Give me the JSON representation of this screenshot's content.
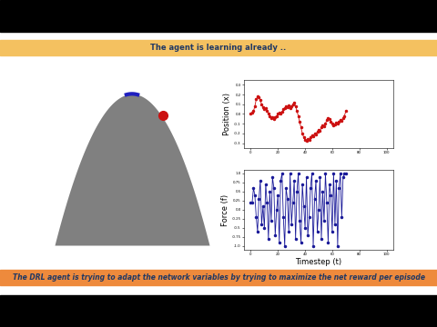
{
  "header": {
    "title": "The agent is learning already .."
  },
  "footer": {
    "text": "The DRL agent is trying to adapt the network variables by trying to maximize the net reward per episode"
  },
  "chart_data": [
    {
      "type": "line",
      "y_label": "Position (x)",
      "color": "#cc1111",
      "marker": "o",
      "line_style": "solid",
      "x": [
        0,
        1,
        2,
        3,
        4,
        5,
        6,
        7,
        8,
        9,
        10,
        11,
        12,
        13,
        14,
        15,
        16,
        17,
        18,
        19,
        20,
        21,
        22,
        23,
        24,
        25,
        26,
        27,
        28,
        29,
        30,
        31,
        32,
        33,
        34,
        35,
        36,
        37,
        38,
        39,
        40,
        41,
        42,
        43,
        44,
        45,
        46,
        47,
        48,
        49,
        50,
        51,
        52,
        53,
        54,
        55,
        56,
        57,
        58,
        59,
        60,
        61,
        62,
        63,
        64,
        65,
        66,
        67,
        68,
        69,
        70
      ],
      "values": [
        0.0,
        0.01,
        0.03,
        0.08,
        0.15,
        0.18,
        0.17,
        0.14,
        0.1,
        0.07,
        0.05,
        0.06,
        0.03,
        0.0,
        -0.02,
        -0.04,
        -0.03,
        -0.05,
        -0.03,
        -0.02,
        0.0,
        0.01,
        0.0,
        0.02,
        0.05,
        0.06,
        0.08,
        0.07,
        0.09,
        0.06,
        0.08,
        0.1,
        0.12,
        0.08,
        0.03,
        -0.02,
        -0.08,
        -0.14,
        -0.2,
        -0.24,
        -0.27,
        -0.28,
        -0.26,
        -0.27,
        -0.24,
        -0.22,
        -0.23,
        -0.2,
        -0.21,
        -0.18,
        -0.16,
        -0.17,
        -0.14,
        -0.12,
        -0.13,
        -0.1,
        -0.06,
        -0.04,
        -0.05,
        -0.08,
        -0.1,
        -0.12,
        -0.11,
        -0.09,
        -0.1,
        -0.08,
        -0.06,
        -0.07,
        -0.04,
        -0.02,
        0.03
      ],
      "xlim": [
        -5,
        105
      ],
      "xticks": [
        0,
        20,
        40,
        60,
        80,
        100
      ],
      "ylim": [
        -0.35,
        0.35
      ],
      "yticks": [
        -0.3,
        -0.2,
        -0.1,
        0.0,
        0.1,
        0.2,
        0.3
      ]
    },
    {
      "type": "line",
      "y_label": "Force (f)",
      "x_label": "Timestep (t)",
      "color": "#1a1a99",
      "marker": "o",
      "line_style": "solid",
      "x": [
        0,
        1,
        2,
        3,
        4,
        5,
        6,
        7,
        8,
        9,
        10,
        11,
        12,
        13,
        14,
        15,
        16,
        17,
        18,
        19,
        20,
        21,
        22,
        23,
        24,
        25,
        26,
        27,
        28,
        29,
        30,
        31,
        32,
        33,
        34,
        35,
        36,
        37,
        38,
        39,
        40,
        41,
        42,
        43,
        44,
        45,
        46,
        47,
        48,
        49,
        50,
        51,
        52,
        53,
        54,
        55,
        56,
        57,
        58,
        59,
        60,
        61,
        62,
        63,
        64,
        65,
        66,
        67,
        68,
        69,
        70
      ],
      "values": [
        0.2,
        0.2,
        0.6,
        0.4,
        -0.2,
        -0.6,
        0.3,
        0.8,
        -0.4,
        0.1,
        -0.5,
        0.7,
        0.2,
        -0.8,
        0.5,
        -0.3,
        0.9,
        0.6,
        -0.7,
        0.0,
        0.4,
        -0.9,
        0.8,
        1.0,
        -0.2,
        -1.0,
        0.6,
        0.3,
        -0.6,
        1.0,
        -0.4,
        0.2,
        0.8,
        -0.8,
        0.5,
        1.0,
        -0.3,
        -0.9,
        0.7,
        0.1,
        -0.5,
        0.9,
        -0.7,
        -0.2,
        0.6,
        1.0,
        -1.0,
        0.3,
        0.8,
        -0.6,
        0.0,
        0.9,
        -0.8,
        0.5,
        -0.3,
        1.0,
        0.2,
        -0.9,
        0.7,
        0.4,
        -0.6,
        1.0,
        -0.4,
        0.8,
        -1.0,
        0.6,
        1.0,
        -0.2,
        0.9,
        1.0,
        1.0
      ],
      "xlim": [
        -5,
        105
      ],
      "xticks": [
        0,
        20,
        40,
        60,
        80,
        100
      ],
      "ylim": [
        -1.1,
        1.1
      ],
      "yticks": [
        -1.0,
        -0.75,
        -0.5,
        -0.25,
        0.0,
        0.25,
        0.5,
        0.75,
        1.0
      ]
    }
  ]
}
